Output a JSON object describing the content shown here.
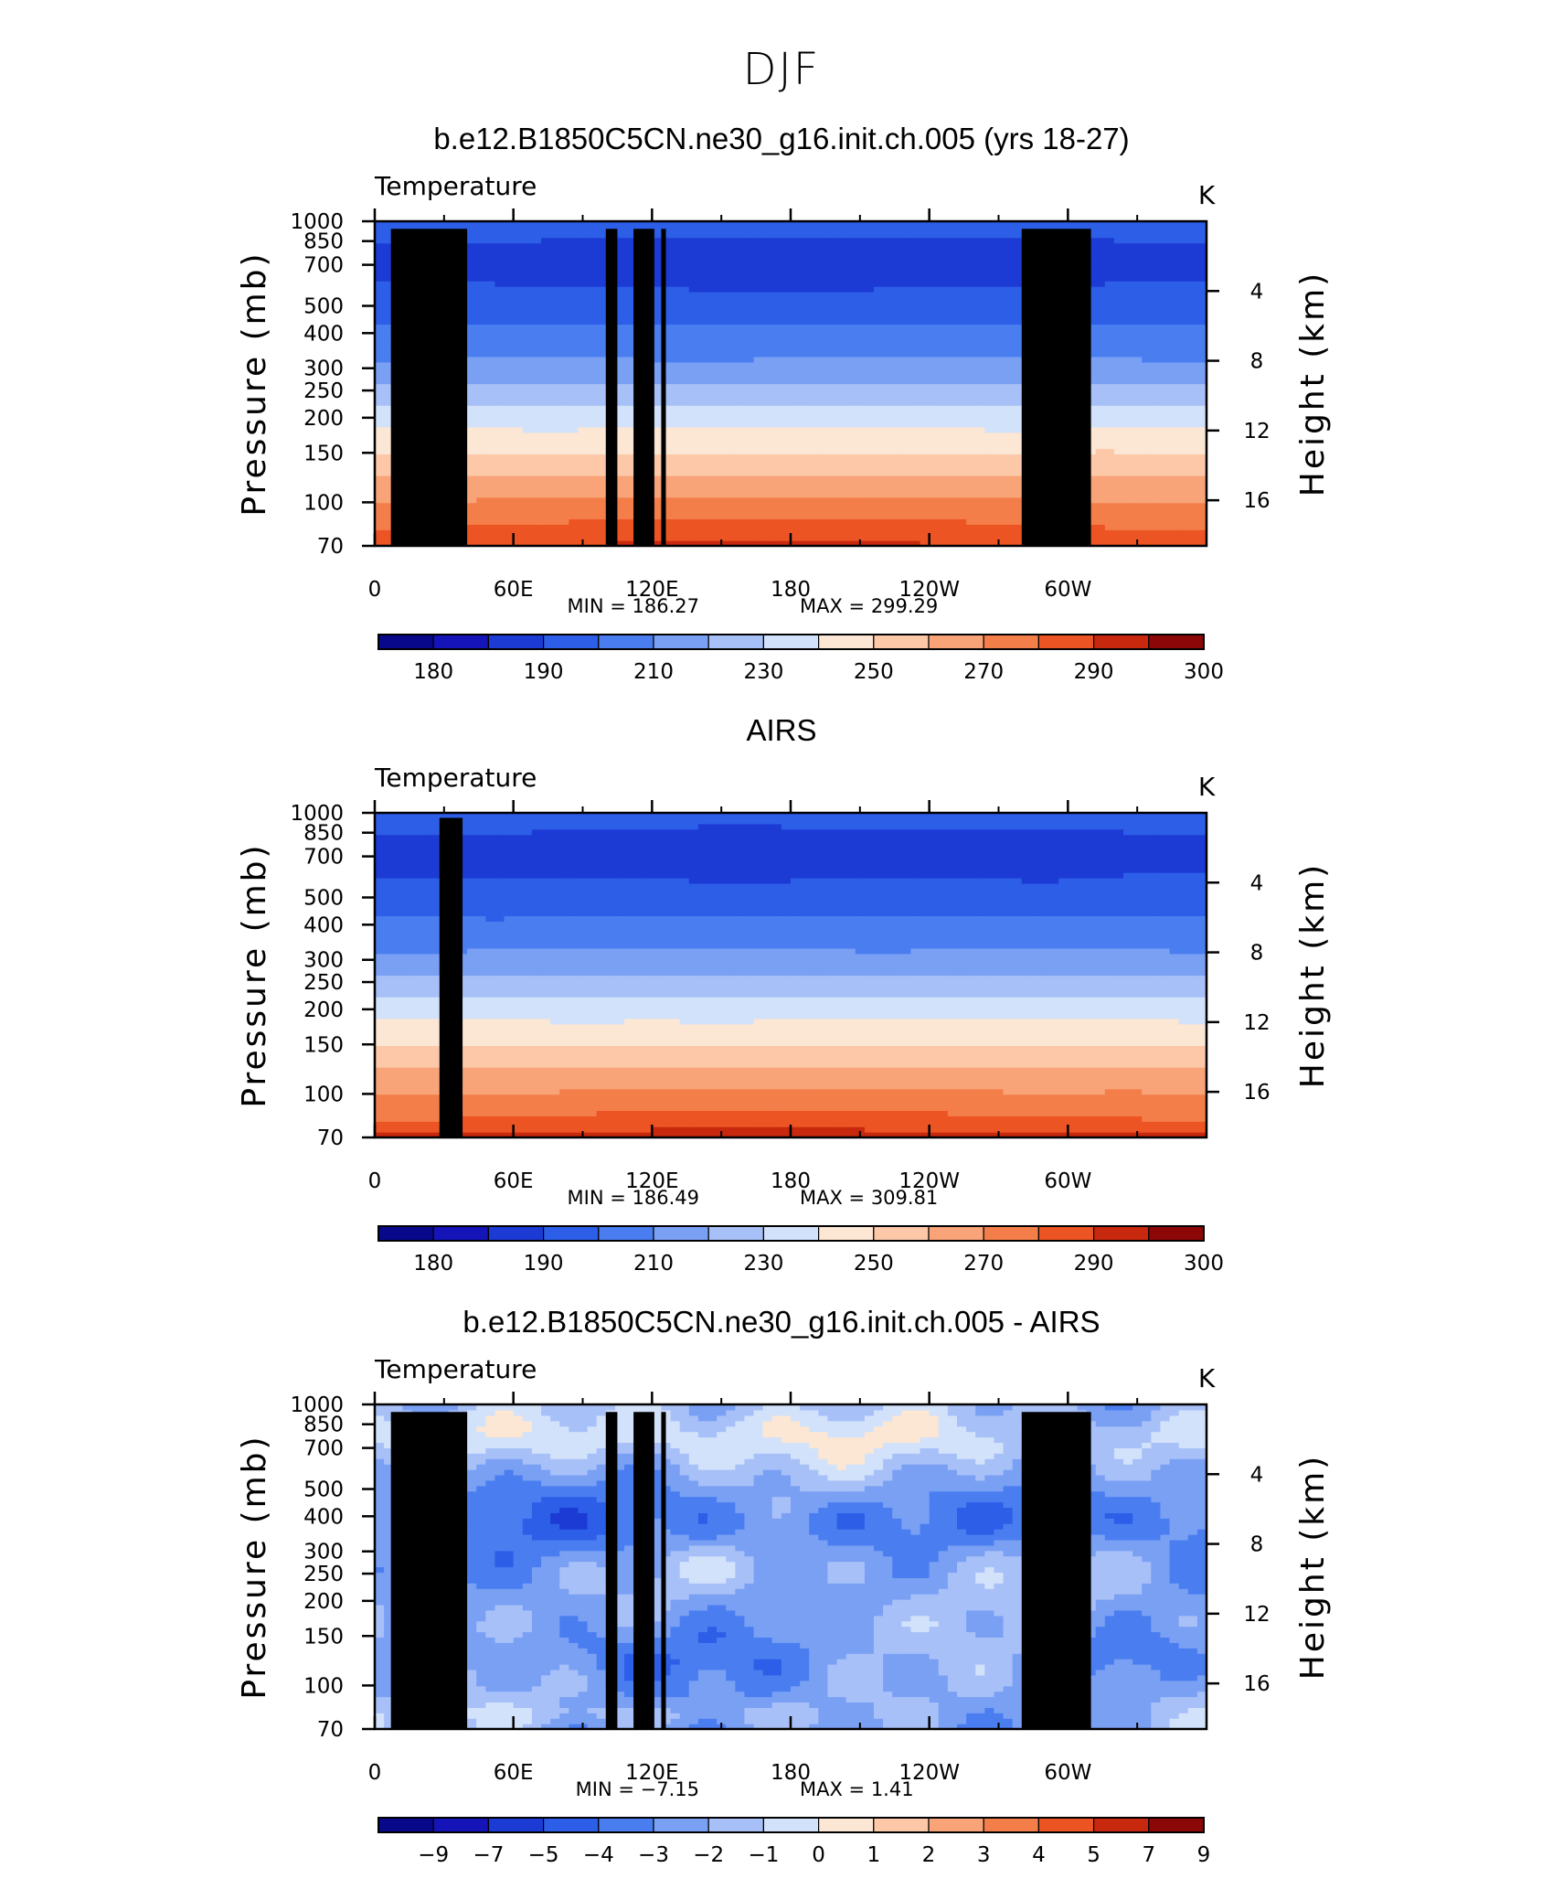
{
  "figure_title": "DJF",
  "chart_data": [
    {
      "type": "heatmap",
      "title": "b.e12.B1850C5CN.ne30_g16.init.ch.005 (yrs 18-27)",
      "variable": "Temperature",
      "units": "K",
      "ylabel": "Pressure  (mb)",
      "ylabel_right": "Height  (km)",
      "xticks": [
        "0",
        "60E",
        "120E",
        "180",
        "120W",
        "60W"
      ],
      "yticks": [
        "70",
        "100",
        "150",
        "200",
        "250",
        "300",
        "400",
        "500",
        "700",
        "850",
        "1000"
      ],
      "yticks_right": [
        "16",
        "12",
        "8",
        "4"
      ],
      "ylim": [
        1000,
        70
      ],
      "min_label": "MIN  =   186.27",
      "max_label": "MAX  =   299.29",
      "min": 186.27,
      "max": 299.29,
      "colorbar_labels": [
        "180",
        "190",
        "210",
        "230",
        "250",
        "270",
        "290",
        "300"
      ],
      "levels": [
        170,
        180,
        190,
        200,
        210,
        220,
        230,
        240,
        250,
        260,
        270,
        280,
        290,
        300,
        310
      ],
      "colors": [
        "#08088a",
        "#1414b8",
        "#1c3ad4",
        "#2c5ee8",
        "#4a7ef0",
        "#7aa0f4",
        "#a8c0f8",
        "#d2e2fa",
        "#fce6d4",
        "#fcc8a8",
        "#f8a478",
        "#f47e4a",
        "#ec5424",
        "#c8280e",
        "#8c0808"
      ],
      "field_type": "temperature",
      "terrain": true
    },
    {
      "type": "heatmap",
      "title": "AIRS",
      "variable": "Temperature",
      "units": "K",
      "ylabel": "Pressure  (mb)",
      "ylabel_right": "Height  (km)",
      "xticks": [
        "0",
        "60E",
        "120E",
        "180",
        "120W",
        "60W"
      ],
      "yticks": [
        "70",
        "100",
        "150",
        "200",
        "250",
        "300",
        "400",
        "500",
        "700",
        "850",
        "1000"
      ],
      "yticks_right": [
        "16",
        "12",
        "8",
        "4"
      ],
      "ylim": [
        1000,
        70
      ],
      "min_label": "MIN  =   186.49",
      "max_label": "MAX  =   309.81",
      "min": 186.49,
      "max": 309.81,
      "colorbar_labels": [
        "180",
        "190",
        "210",
        "230",
        "250",
        "270",
        "290",
        "300"
      ],
      "levels": [
        170,
        180,
        190,
        200,
        210,
        220,
        230,
        240,
        250,
        260,
        270,
        280,
        290,
        300,
        310
      ],
      "colors": [
        "#08088a",
        "#1414b8",
        "#1c3ad4",
        "#2c5ee8",
        "#4a7ef0",
        "#7aa0f4",
        "#a8c0f8",
        "#d2e2fa",
        "#fce6d4",
        "#fcc8a8",
        "#f8a478",
        "#f47e4a",
        "#ec5424",
        "#c8280e",
        "#8c0808"
      ],
      "field_type": "temperature_obs",
      "terrain": false
    },
    {
      "type": "heatmap",
      "title": "b.e12.B1850C5CN.ne30_g16.init.ch.005 - AIRS",
      "variable": "Temperature",
      "units": "K",
      "ylabel": "Pressure  (mb)",
      "ylabel_right": "Height  (km)",
      "xticks": [
        "0",
        "60E",
        "120E",
        "180",
        "120W",
        "60W"
      ],
      "yticks": [
        "70",
        "100",
        "150",
        "200",
        "250",
        "300",
        "400",
        "500",
        "700",
        "850",
        "1000"
      ],
      "yticks_right": [
        "16",
        "12",
        "8",
        "4"
      ],
      "ylim": [
        1000,
        70
      ],
      "min_label": "MIN  =    −7.15",
      "max_label": "MAX  =      1.41",
      "min": -7.15,
      "max": 1.41,
      "colorbar_labels": [
        "−9",
        "−7",
        "−5",
        "−4",
        "−3",
        "−2",
        "−1",
        "0",
        "1",
        "2",
        "3",
        "4",
        "5",
        "7",
        "9"
      ],
      "levels": [
        -11,
        -9,
        -7,
        -5,
        -4,
        -3,
        -2,
        -1,
        0,
        1,
        2,
        3,
        4,
        5,
        7,
        9
      ],
      "colors": [
        "#08088a",
        "#1414b8",
        "#1c3ad4",
        "#2c5ee8",
        "#4a7ef0",
        "#7aa0f4",
        "#a8c0f8",
        "#d2e2fa",
        "#fce6d4",
        "#fcc8a8",
        "#f8a478",
        "#f47e4a",
        "#ec5424",
        "#c8280e",
        "#8c0808"
      ],
      "field_type": "difference",
      "terrain": true
    }
  ]
}
